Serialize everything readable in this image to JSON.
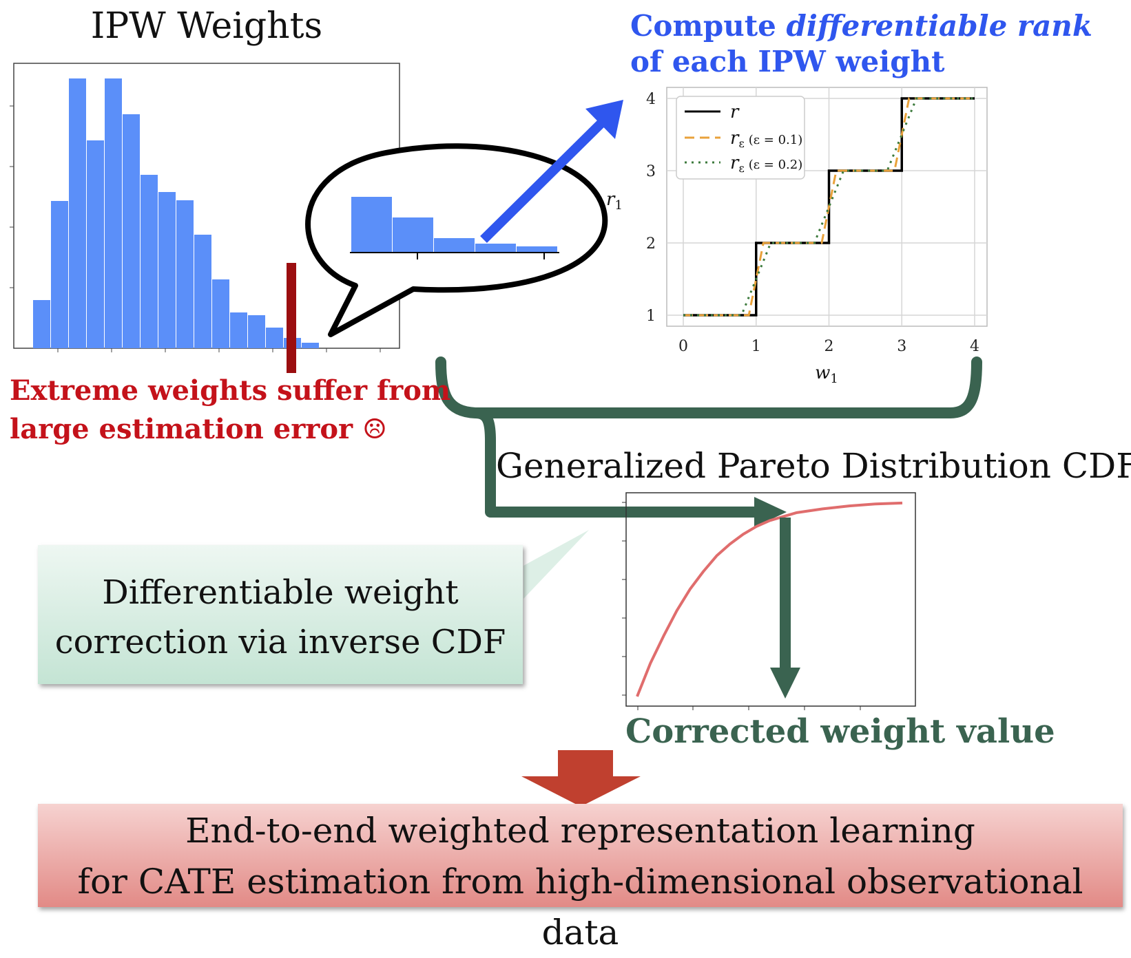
{
  "histogram": {
    "title": "IPW Weights",
    "bar_heights": [
      70,
      214,
      392,
      302,
      392,
      340,
      252,
      227,
      215,
      165,
      100,
      52,
      48,
      30,
      15,
      8
    ],
    "color": "#5b8ff9"
  },
  "extreme_note": {
    "line1": "Extreme weights suffer from",
    "line2": "large estimation error ☹",
    "color": "#c4121a"
  },
  "zoom_histogram": {
    "bar_heights": [
      80,
      50,
      20,
      12,
      8
    ]
  },
  "rank_title": {
    "line1_plain": "Compute ",
    "line1_italic": "differentiable rank",
    "line2": "of each IPW weight",
    "color": "#2f56ee"
  },
  "chart_data": {
    "type": "line",
    "xlabel": "w1",
    "ylabel": "r1",
    "x_ticks": [
      "0",
      "1",
      "2",
      "3",
      "4"
    ],
    "y_ticks": [
      "1",
      "2",
      "3",
      "4"
    ],
    "xlim": [
      0,
      4
    ],
    "ylim": [
      1,
      4
    ],
    "grid": true,
    "legend": "top-left",
    "series": [
      {
        "name": "r",
        "style": "solid",
        "color": "#000000",
        "x": [
          0,
          1,
          1,
          2,
          2,
          3,
          3,
          4
        ],
        "y": [
          1,
          1,
          2,
          2,
          3,
          3,
          4,
          4
        ]
      },
      {
        "name": "rε (ε = 0.1)",
        "style": "dashed",
        "color": "#e9a23b",
        "x": [
          0,
          0.9,
          1.1,
          1.9,
          2.1,
          2.9,
          3.1,
          4
        ],
        "y": [
          1,
          1,
          2,
          2,
          3,
          3,
          4,
          4
        ]
      },
      {
        "name": "rε (ε = 0.2)",
        "style": "dotted",
        "color": "#3c7a3c",
        "x": [
          0,
          0.8,
          1.2,
          1.8,
          2.2,
          2.8,
          3.2,
          4
        ],
        "y": [
          1,
          1,
          2,
          2,
          3,
          3,
          4,
          4
        ]
      }
    ]
  },
  "legend_labels": {
    "r": "r",
    "r_sub": "ε",
    "eps1": "(ε = 0.1)",
    "eps2": "(ε = 0.2)"
  },
  "gpd": {
    "title": "Generalized Pareto Distribution CDF",
    "curve_color": "#e06d6d",
    "curve_points": [
      [
        0.0,
        0.0
      ],
      [
        0.05,
        0.17
      ],
      [
        0.1,
        0.31
      ],
      [
        0.15,
        0.44
      ],
      [
        0.2,
        0.55
      ],
      [
        0.25,
        0.64
      ],
      [
        0.3,
        0.72
      ],
      [
        0.35,
        0.78
      ],
      [
        0.4,
        0.83
      ],
      [
        0.45,
        0.87
      ],
      [
        0.5,
        0.9
      ],
      [
        0.55,
        0.92
      ],
      [
        0.6,
        0.94
      ],
      [
        0.7,
        0.96
      ],
      [
        0.8,
        0.975
      ],
      [
        0.9,
        0.985
      ],
      [
        1.0,
        0.99
      ]
    ]
  },
  "corrected_label": {
    "text": "Corrected weight value",
    "color": "#3a6350"
  },
  "correction_box": {
    "line1": "Differentiable weight",
    "line2": "correction via inverse CDF"
  },
  "bottom_box": {
    "line1": "End-to-end weighted representation learning",
    "line2": "for CATE estimation from high-dimensional observational data"
  },
  "colors": {
    "flow_arrow": "#3a6350",
    "blue_arrow": "#2f56ee",
    "down_arrow": "#c0402f"
  }
}
